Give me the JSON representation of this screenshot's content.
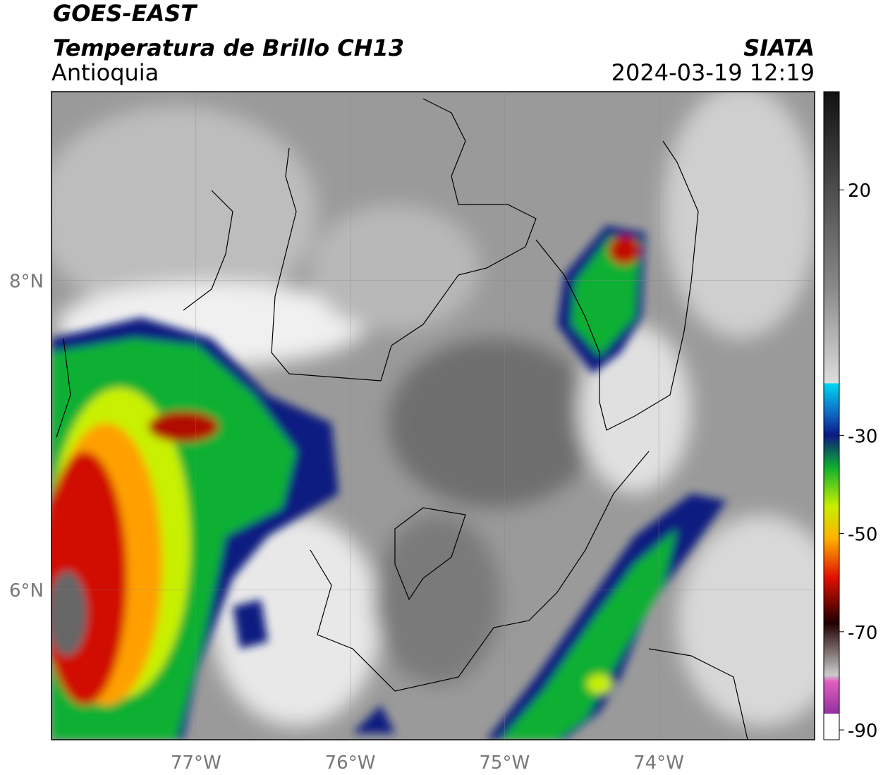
{
  "header": {
    "title": "GOES-EAST",
    "subtitle": "Temperatura de Brillo CH13",
    "region": "Antioquia",
    "source": "SIATA",
    "datetime": "2024-03-19 12:19"
  },
  "map": {
    "xlim": [
      -77.936,
      -72.99
    ],
    "ylim": [
      5.03,
      9.22
    ],
    "xticks": [
      {
        "value": -77,
        "label": "77°W"
      },
      {
        "value": -76,
        "label": "76°W"
      },
      {
        "value": -75,
        "label": "75°W"
      },
      {
        "value": -74,
        "label": "74°W"
      }
    ],
    "yticks": [
      {
        "value": 8,
        "label": "8°N"
      },
      {
        "value": 6,
        "label": "6°N"
      }
    ],
    "grid": true
  },
  "colorbar": {
    "lim": [
      -92,
      40
    ],
    "ticks": [
      20,
      -30,
      -50,
      -70,
      -90
    ]
  }
}
